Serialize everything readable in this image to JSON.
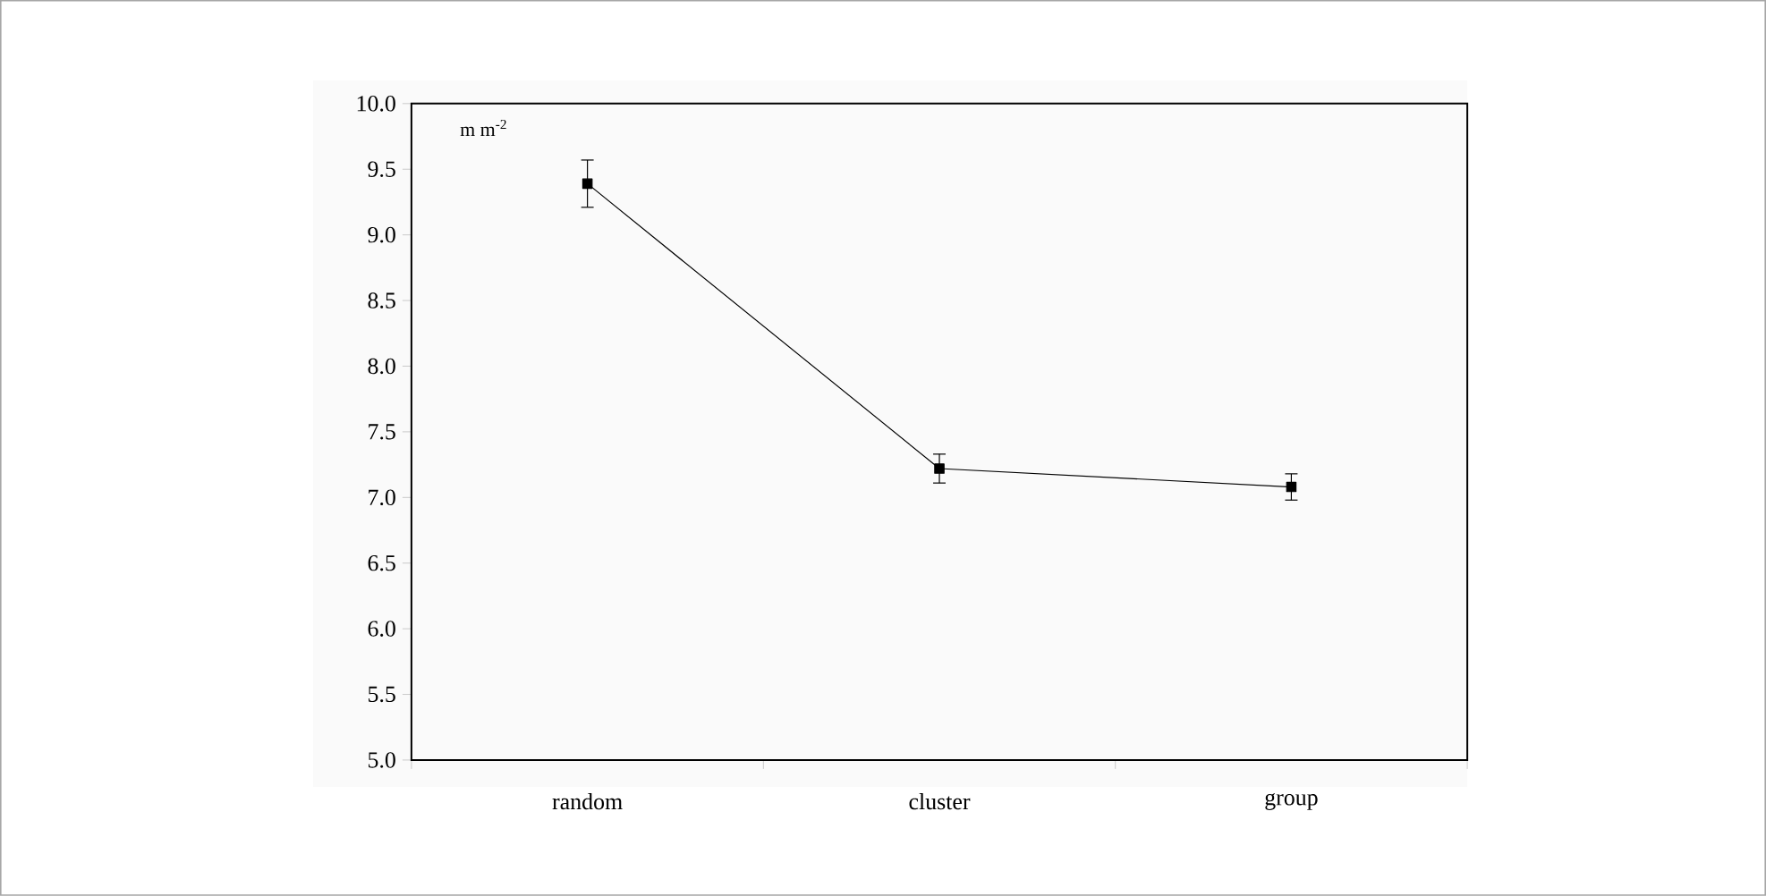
{
  "chart_data": {
    "type": "line",
    "ylabel": "m m$^{-2}$",
    "categories": [
      "random",
      "cluster",
      "group"
    ],
    "series": [
      {
        "color": "#000000",
        "values": [
          9.39,
          7.22,
          7.08
        ],
        "errors": [
          0.18,
          0.11,
          0.1
        ]
      }
    ],
    "ylim": [
      5.0,
      10.0
    ],
    "yticks": [
      {
        "value": 5.0,
        "label": "5.0"
      },
      {
        "value": 5.5,
        "label": "5.5"
      },
      {
        "value": 6.0,
        "label": "6.0"
      },
      {
        "value": 6.5,
        "label": "6.5"
      },
      {
        "value": 7.0,
        "label": "7.0"
      },
      {
        "value": 7.5,
        "label": "7.5"
      },
      {
        "value": 8.0,
        "label": "8.0"
      },
      {
        "value": 8.5,
        "label": "8.5"
      },
      {
        "value": 9.0,
        "label": "9.0"
      },
      {
        "value": 9.5,
        "label": "9.5"
      },
      {
        "value": 10.0,
        "label": "10.0"
      }
    ],
    "marker": "square",
    "line_style": "solid",
    "grid": false
  }
}
